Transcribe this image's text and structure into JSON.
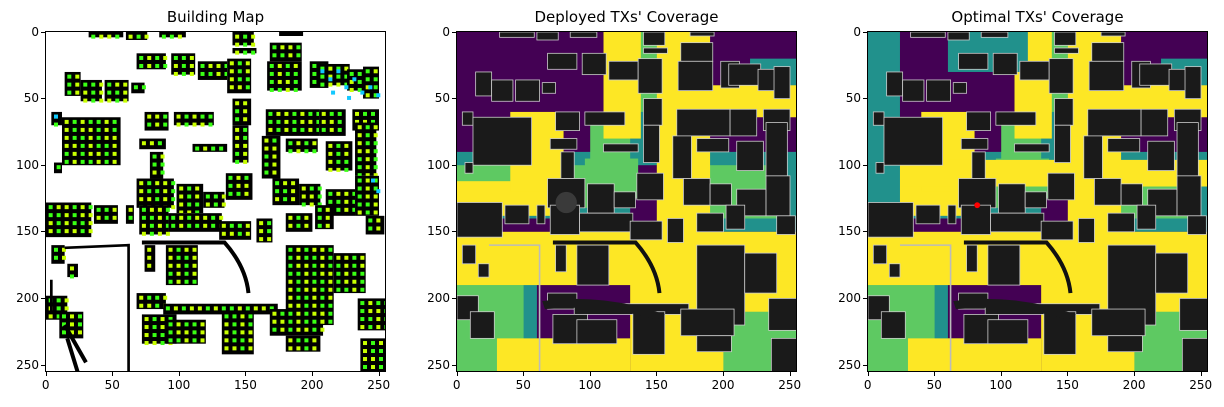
{
  "panels": [
    {
      "title": "Building Map"
    },
    {
      "title": "Deployed TXs' Coverage"
    },
    {
      "title": "Optimal TXs' Coverage"
    }
  ],
  "axes": {
    "xticks": [
      "0",
      "50",
      "100",
      "150",
      "200",
      "250"
    ],
    "yticks": [
      "0",
      "50",
      "100",
      "150",
      "200",
      "250"
    ],
    "range": [
      0,
      256
    ]
  },
  "colors": {
    "building": "#000000",
    "free": "#ffffff",
    "candidate_green": "#39ff14",
    "candidate_yellow": "#c8ff00",
    "candidate_cyan": "#12c8ff",
    "coverage_low": "#440154",
    "coverage_mid": "#21918c",
    "coverage_high": "#5ec962",
    "coverage_max": "#fde725",
    "building_overlay": "#1a1a1a",
    "tx_marker": "#ff0000"
  },
  "optimal_tx": {
    "x": 82,
    "y": 130
  }
}
